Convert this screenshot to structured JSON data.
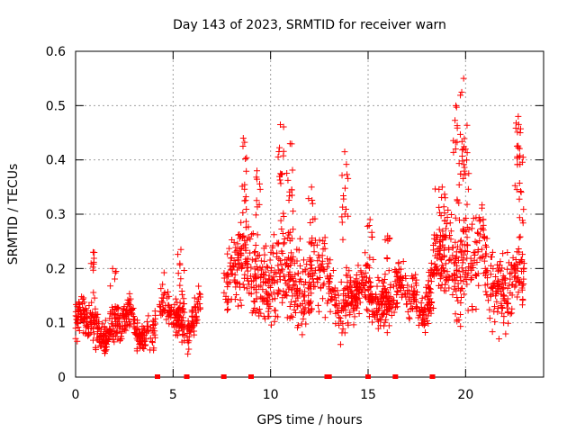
{
  "chart_data": {
    "type": "scatter",
    "title": "Day 143 of 2023, SRMTID for receiver warn",
    "xlabel": "GPS time / hours",
    "ylabel": "SRMTID / TECUs",
    "xlim": [
      0,
      24
    ],
    "ylim": [
      0,
      0.6
    ],
    "x_ticks": [
      0,
      5,
      10,
      15,
      20
    ],
    "x_tick_labels": [
      "0",
      "5",
      "10",
      "15",
      "20"
    ],
    "y_ticks": [
      0,
      0.1,
      0.2,
      0.3,
      0.4,
      0.5,
      0.6
    ],
    "y_tick_labels": [
      "0",
      "0.1",
      "0.2",
      "0.3",
      "0.4",
      "0.5",
      "0.6"
    ],
    "grid": true,
    "marker": "+",
    "color": "#ff0000",
    "series": [
      {
        "name": "SRMTID",
        "segments": [
          {
            "x0": 0.0,
            "x1": 4.1,
            "base": 0.095,
            "spread": 0.05
          },
          {
            "x0": 4.3,
            "x1": 5.6,
            "base": 0.11,
            "spread": 0.06
          },
          {
            "x0": 5.7,
            "x1": 6.4,
            "base": 0.11,
            "spread": 0.05
          },
          {
            "x0": 7.6,
            "x1": 9.0,
            "base": 0.2,
            "spread": 0.11
          },
          {
            "x0": 9.0,
            "x1": 12.8,
            "base": 0.18,
            "spread": 0.11
          },
          {
            "x0": 12.9,
            "x1": 15.0,
            "base": 0.15,
            "spread": 0.07
          },
          {
            "x0": 15.0,
            "x1": 18.3,
            "base": 0.15,
            "spread": 0.06
          },
          {
            "x0": 18.3,
            "x1": 21.0,
            "base": 0.22,
            "spread": 0.13
          },
          {
            "x0": 21.0,
            "x1": 23.0,
            "base": 0.17,
            "spread": 0.1
          }
        ],
        "peaks": [
          {
            "x": 0.9,
            "y": 0.23
          },
          {
            "x": 1.9,
            "y": 0.2
          },
          {
            "x": 5.4,
            "y": 0.235
          },
          {
            "x": 8.6,
            "y": 0.44
          },
          {
            "x": 9.3,
            "y": 0.38
          },
          {
            "x": 10.5,
            "y": 0.465
          },
          {
            "x": 11.0,
            "y": 0.43
          },
          {
            "x": 12.1,
            "y": 0.35
          },
          {
            "x": 13.8,
            "y": 0.415
          },
          {
            "x": 15.1,
            "y": 0.29
          },
          {
            "x": 16.0,
            "y": 0.26
          },
          {
            "x": 18.8,
            "y": 0.35
          },
          {
            "x": 19.5,
            "y": 0.5
          },
          {
            "x": 19.9,
            "y": 0.55
          },
          {
            "x": 20.0,
            "y": 0.42
          },
          {
            "x": 22.7,
            "y": 0.48
          },
          {
            "x": 22.8,
            "y": 0.45
          }
        ]
      }
    ],
    "zero_markers_x": [
      4.2,
      5.7,
      7.6,
      9.0,
      12.9,
      13.0,
      15.0,
      16.4,
      18.3
    ]
  }
}
